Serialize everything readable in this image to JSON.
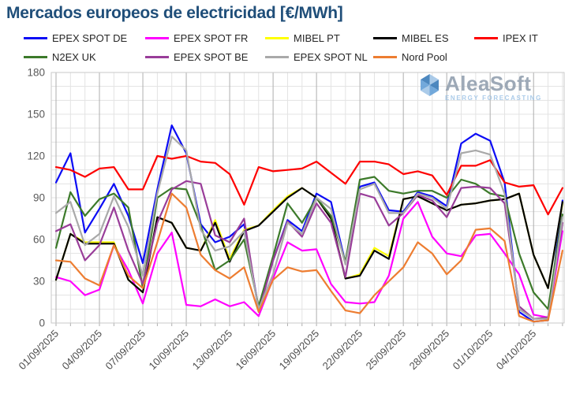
{
  "title": "Mercados europeos de electricidad [€/MWh]",
  "logo": {
    "name": "AleaSoft",
    "tagline": "ENERGY FORECASTING"
  },
  "colors": {
    "title": "#1F4E79",
    "axis_text": "#595959",
    "date_text": "#4d4d4d",
    "grid_minor": "#e3e3e3",
    "grid_major": "#aeaeae",
    "plot_border": "#c9c9c9",
    "logo_text": "#8d9bab",
    "logo_tagline": "#9dc3e6"
  },
  "chart_data": {
    "type": "line",
    "title": "Mercados europeos de electricidad [€/MWh]",
    "xlabel": "",
    "ylabel": "€/MWh",
    "ylim": [
      0,
      180
    ],
    "y_ticks": [
      0,
      30,
      60,
      90,
      120,
      150,
      180
    ],
    "grid": true,
    "legend_position": "top",
    "tick_every": 3,
    "dates": [
      "01/09/2025",
      "02/09/2025",
      "03/09/2025",
      "04/09/2025",
      "05/09/2025",
      "06/09/2025",
      "07/09/2025",
      "08/09/2025",
      "09/09/2025",
      "10/09/2025",
      "11/09/2025",
      "12/09/2025",
      "13/09/2025",
      "14/09/2025",
      "15/09/2025",
      "16/09/2025",
      "17/09/2025",
      "18/09/2025",
      "19/09/2025",
      "20/09/2025",
      "21/09/2025",
      "22/09/2025",
      "23/09/2025",
      "24/09/2025",
      "25/09/2025",
      "26/09/2025",
      "27/09/2025",
      "28/09/2025",
      "29/09/2025",
      "30/09/2025",
      "01/10/2025",
      "02/10/2025",
      "03/10/2025",
      "04/10/2025",
      "05/10/2025",
      "06/10/2025"
    ],
    "series": [
      {
        "name": "EPEX SPOT DE",
        "color": "#0c0cf5",
        "values": [
          101,
          122,
          65,
          82,
          100,
          77,
          43,
          96,
          142,
          122,
          71,
          58,
          62,
          71,
          10,
          45,
          74,
          66,
          93,
          87,
          43,
          98,
          101,
          81,
          80,
          94,
          91,
          84,
          129,
          136,
          131,
          101,
          8,
          1,
          2,
          88
        ]
      },
      {
        "name": "EPEX SPOT FR",
        "color": "#ff00ff",
        "values": [
          33,
          30,
          20,
          24,
          56,
          38,
          14,
          50,
          65,
          13,
          12,
          17,
          12,
          15,
          5,
          32,
          58,
          52,
          53,
          28,
          15,
          14,
          15,
          34,
          75,
          87,
          62,
          50,
          48,
          63,
          64,
          50,
          35,
          6,
          4,
          66
        ]
      },
      {
        "name": "MIBEL PT",
        "color": "#ffff00",
        "values": [
          31,
          64,
          58,
          58,
          58,
          31,
          22,
          76,
          72,
          54,
          52,
          74,
          46,
          67,
          70,
          81,
          91,
          97,
          90,
          75,
          32,
          35,
          54,
          48,
          89,
          91,
          86,
          81,
          85,
          86,
          88,
          89,
          93,
          49,
          25,
          86
        ]
      },
      {
        "name": "MIBEL ES",
        "color": "#000000",
        "values": [
          31,
          64,
          57,
          57,
          57,
          31,
          22,
          76,
          72,
          54,
          52,
          72,
          44,
          66,
          70,
          80,
          90,
          97,
          90,
          75,
          32,
          34,
          52,
          46,
          89,
          91,
          86,
          81,
          85,
          86,
          88,
          89,
          93,
          49,
          25,
          87
        ]
      },
      {
        "name": "IPEX IT",
        "color": "#fe0000",
        "values": [
          112,
          110,
          105,
          111,
          112,
          96,
          96,
          120,
          118,
          120,
          116,
          115,
          107,
          85,
          112,
          109,
          110,
          111,
          116,
          108,
          100,
          116,
          116,
          114,
          107,
          109,
          106,
          92,
          113,
          113,
          117,
          101,
          98,
          99,
          78,
          97
        ]
      },
      {
        "name": "N2EX UK",
        "color": "#3c7a2a",
        "values": [
          54,
          94,
          77,
          89,
          93,
          83,
          25,
          90,
          97,
          96,
          70,
          38,
          45,
          60,
          12,
          48,
          86,
          72,
          90,
          77,
          44,
          103,
          105,
          95,
          93,
          95,
          95,
          90,
          103,
          100,
          93,
          91,
          50,
          22,
          10,
          78
        ]
      },
      {
        "name": "EPEX SPOT BE",
        "color": "#993d99",
        "values": [
          66,
          71,
          45,
          56,
          83,
          52,
          28,
          72,
          96,
          102,
          100,
          63,
          58,
          75,
          8,
          45,
          73,
          62,
          86,
          72,
          33,
          93,
          90,
          70,
          79,
          92,
          88,
          76,
          97,
          98,
          97,
          86,
          12,
          3,
          4,
          72
        ]
      },
      {
        "name": "EPEX SPOT NL",
        "color": "#a9a9a9",
        "values": [
          79,
          87,
          56,
          64,
          91,
          69,
          34,
          93,
          134,
          124,
          67,
          52,
          55,
          66,
          10,
          35,
          72,
          64,
          90,
          82,
          42,
          96,
          100,
          79,
          79,
          93,
          90,
          82,
          122,
          124,
          121,
          93,
          10,
          3,
          3,
          76
        ]
      },
      {
        "name": "Nord Pool",
        "color": "#ed7d31",
        "values": [
          45,
          44,
          32,
          27,
          56,
          34,
          25,
          58,
          93,
          83,
          49,
          38,
          32,
          40,
          8,
          31,
          40,
          37,
          38,
          23,
          9,
          7,
          20,
          30,
          40,
          58,
          50,
          35,
          45,
          67,
          68,
          59,
          5,
          1,
          2,
          52
        ]
      }
    ]
  }
}
